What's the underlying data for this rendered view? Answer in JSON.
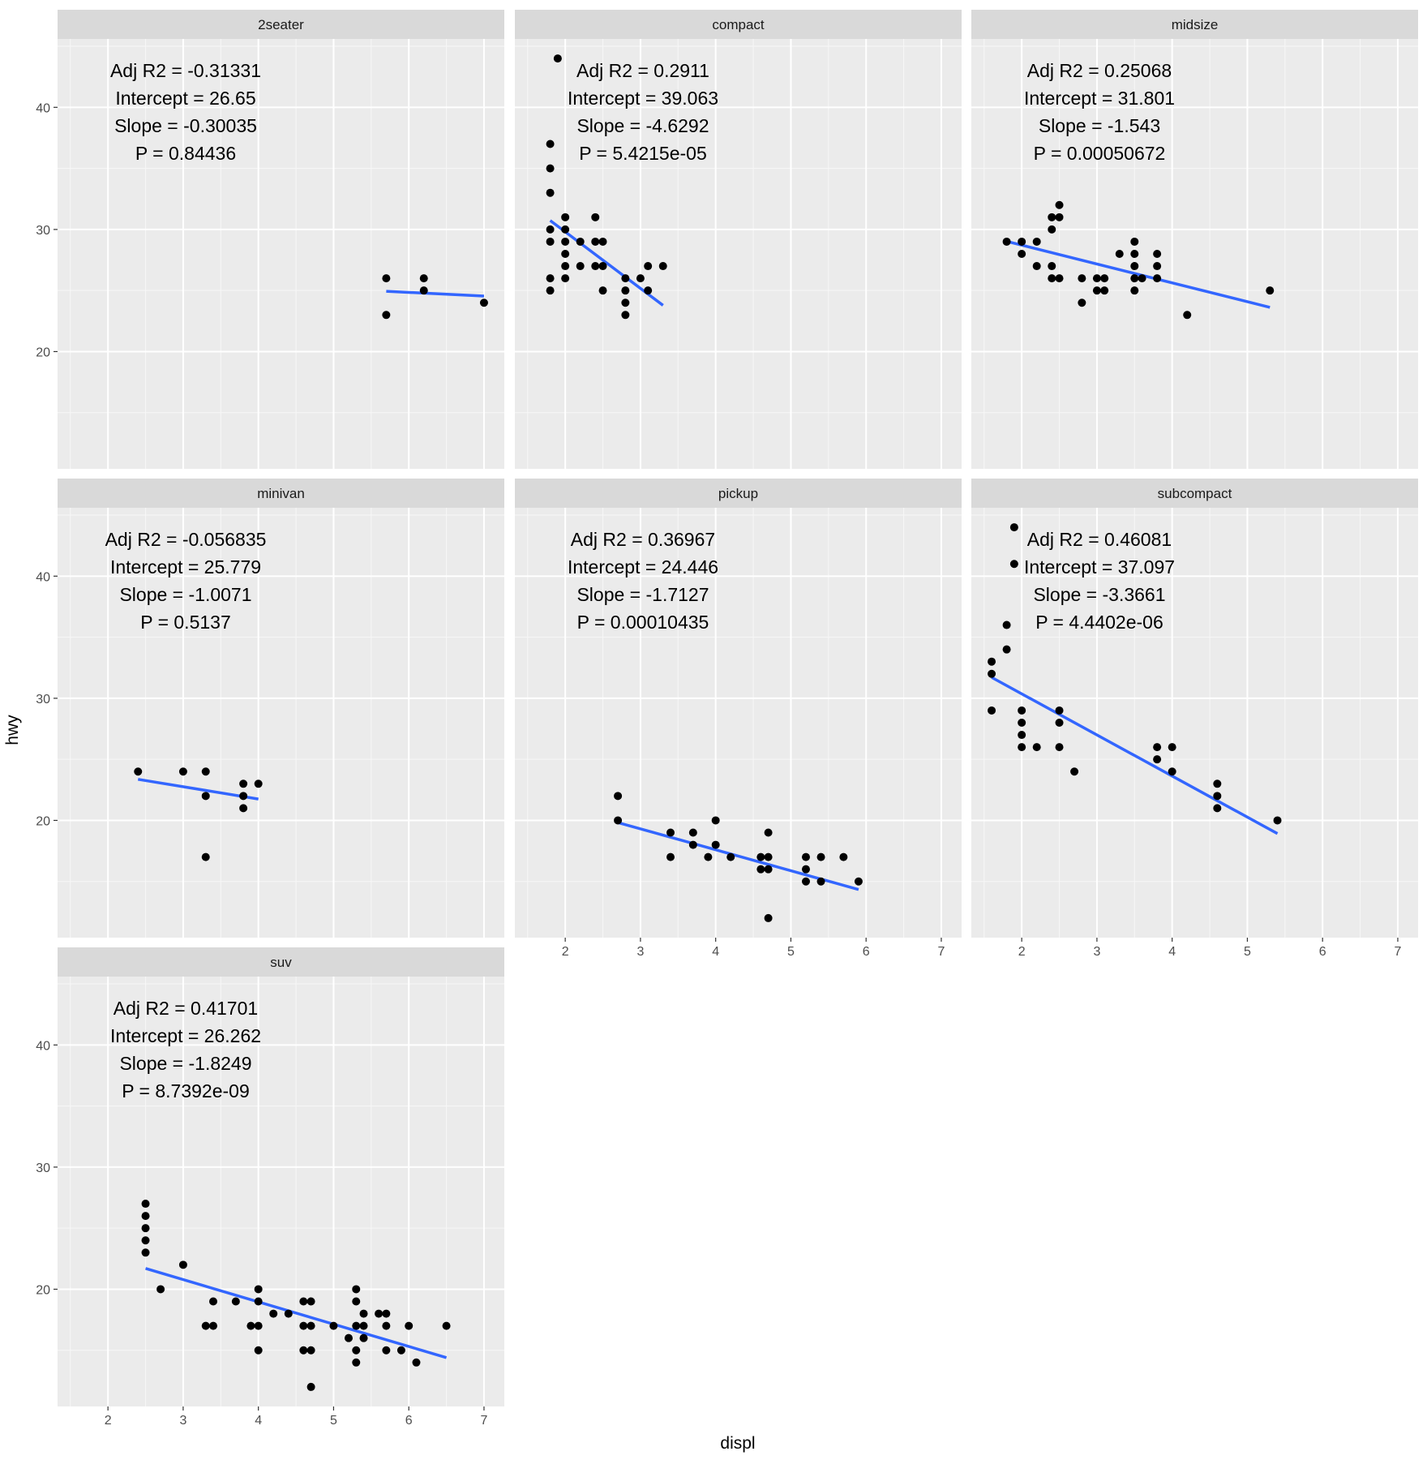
{
  "chart_data": {
    "type": "scatter",
    "xlabel": "displ",
    "ylabel": "hwy",
    "xlim": [
      1.33,
      7.27
    ],
    "ylim": [
      10.4,
      45.6
    ],
    "x_ticks": [
      2,
      3,
      4,
      5,
      6,
      7
    ],
    "y_ticks": [
      20,
      30,
      40
    ],
    "grid": true,
    "point_color": "#000000",
    "line_color": "#3366FF",
    "panels": [
      {
        "name": "2seater",
        "annotation": [
          "Adj R2 =  -0.31331",
          "Intercept = 26.65",
          "Slope = -0.30035",
          "P = 0.84436"
        ],
        "fit": {
          "x": [
            5.7,
            7.0
          ]
        },
        "points": [
          [
            5.7,
            26
          ],
          [
            5.7,
            23
          ],
          [
            6.2,
            26
          ],
          [
            6.2,
            25
          ],
          [
            7.0,
            24
          ]
        ]
      },
      {
        "name": "compact",
        "annotation": [
          "Adj R2 =  0.2911",
          "Intercept = 39.063",
          "Slope = -4.6292",
          "P = 5.4215e-05"
        ],
        "fit": {
          "x": [
            1.8,
            3.3
          ]
        },
        "points": [
          [
            1.9,
            44
          ],
          [
            1.8,
            37
          ],
          [
            1.8,
            35
          ],
          [
            1.8,
            33
          ],
          [
            1.8,
            30
          ],
          [
            1.8,
            29
          ],
          [
            1.8,
            26
          ],
          [
            1.8,
            25
          ],
          [
            2.0,
            31
          ],
          [
            2.0,
            30
          ],
          [
            2.0,
            29
          ],
          [
            2.0,
            28
          ],
          [
            2.0,
            27
          ],
          [
            2.0,
            26
          ],
          [
            2.2,
            29
          ],
          [
            2.2,
            27
          ],
          [
            2.4,
            31
          ],
          [
            2.4,
            29
          ],
          [
            2.4,
            27
          ],
          [
            2.5,
            29
          ],
          [
            2.5,
            27
          ],
          [
            2.5,
            25
          ],
          [
            2.8,
            26
          ],
          [
            2.8,
            25
          ],
          [
            2.8,
            24
          ],
          [
            2.8,
            23
          ],
          [
            3.0,
            26
          ],
          [
            3.1,
            27
          ],
          [
            3.1,
            25
          ],
          [
            3.3,
            27
          ]
        ]
      },
      {
        "name": "midsize",
        "annotation": [
          "Adj R2 =  0.25068",
          "Intercept = 31.801",
          "Slope = -1.543",
          "P = 0.00050672"
        ],
        "fit": {
          "x": [
            1.8,
            5.3
          ]
        },
        "points": [
          [
            1.8,
            29
          ],
          [
            2.0,
            29
          ],
          [
            2.0,
            28
          ],
          [
            2.2,
            29
          ],
          [
            2.2,
            27
          ],
          [
            2.4,
            31
          ],
          [
            2.4,
            30
          ],
          [
            2.4,
            27
          ],
          [
            2.4,
            26
          ],
          [
            2.5,
            32
          ],
          [
            2.5,
            31
          ],
          [
            2.5,
            26
          ],
          [
            2.8,
            26
          ],
          [
            2.8,
            24
          ],
          [
            3.0,
            26
          ],
          [
            3.0,
            25
          ],
          [
            3.1,
            26
          ],
          [
            3.1,
            25
          ],
          [
            3.3,
            28
          ],
          [
            3.5,
            29
          ],
          [
            3.5,
            28
          ],
          [
            3.5,
            27
          ],
          [
            3.5,
            26
          ],
          [
            3.5,
            25
          ],
          [
            3.6,
            26
          ],
          [
            3.8,
            28
          ],
          [
            3.8,
            27
          ],
          [
            3.8,
            26
          ],
          [
            4.2,
            23
          ],
          [
            5.3,
            25
          ]
        ]
      },
      {
        "name": "minivan",
        "annotation": [
          "Adj R2 =  -0.056835",
          "Intercept = 25.779",
          "Slope = -1.0071",
          "P = 0.5137"
        ],
        "fit": {
          "x": [
            2.4,
            4.0
          ]
        },
        "points": [
          [
            2.4,
            24
          ],
          [
            3.0,
            24
          ],
          [
            3.3,
            24
          ],
          [
            3.3,
            22
          ],
          [
            3.3,
            17
          ],
          [
            3.8,
            23
          ],
          [
            3.8,
            22
          ],
          [
            3.8,
            21
          ],
          [
            4.0,
            23
          ]
        ]
      },
      {
        "name": "pickup",
        "annotation": [
          "Adj R2 =  0.36967",
          "Intercept = 24.446",
          "Slope = -1.7127",
          "P = 0.00010435"
        ],
        "fit": {
          "x": [
            2.7,
            5.9
          ]
        },
        "points": [
          [
            2.7,
            22
          ],
          [
            2.7,
            20
          ],
          [
            3.4,
            19
          ],
          [
            3.4,
            17
          ],
          [
            3.7,
            19
          ],
          [
            3.7,
            18
          ],
          [
            3.9,
            17
          ],
          [
            4.0,
            20
          ],
          [
            4.0,
            18
          ],
          [
            4.2,
            17
          ],
          [
            4.6,
            17
          ],
          [
            4.6,
            16
          ],
          [
            4.7,
            19
          ],
          [
            4.7,
            17
          ],
          [
            4.7,
            16
          ],
          [
            4.7,
            12
          ],
          [
            5.2,
            17
          ],
          [
            5.2,
            16
          ],
          [
            5.2,
            15
          ],
          [
            5.4,
            17
          ],
          [
            5.4,
            15
          ],
          [
            5.7,
            17
          ],
          [
            5.9,
            15
          ]
        ]
      },
      {
        "name": "subcompact",
        "annotation": [
          "Adj R2 =  0.46081",
          "Intercept = 37.097",
          "Slope = -3.3661",
          "P = 4.4402e-06"
        ],
        "fit": {
          "x": [
            1.6,
            5.4
          ]
        },
        "points": [
          [
            1.9,
            44
          ],
          [
            1.9,
            41
          ],
          [
            1.8,
            36
          ],
          [
            1.8,
            34
          ],
          [
            1.6,
            33
          ],
          [
            1.6,
            32
          ],
          [
            1.6,
            29
          ],
          [
            2.0,
            29
          ],
          [
            2.0,
            28
          ],
          [
            2.0,
            27
          ],
          [
            2.0,
            26
          ],
          [
            2.2,
            26
          ],
          [
            2.5,
            29
          ],
          [
            2.5,
            28
          ],
          [
            2.5,
            26
          ],
          [
            2.7,
            24
          ],
          [
            3.8,
            26
          ],
          [
            3.8,
            25
          ],
          [
            4.0,
            26
          ],
          [
            4.0,
            24
          ],
          [
            4.6,
            23
          ],
          [
            4.6,
            22
          ],
          [
            4.6,
            21
          ],
          [
            5.4,
            20
          ]
        ]
      },
      {
        "name": "suv",
        "annotation": [
          "Adj R2 =  0.41701",
          "Intercept = 26.262",
          "Slope = -1.8249",
          "P = 8.7392e-09"
        ],
        "fit": {
          "x": [
            2.5,
            6.5
          ]
        },
        "points": [
          [
            2.5,
            27
          ],
          [
            2.5,
            26
          ],
          [
            2.5,
            25
          ],
          [
            2.5,
            24
          ],
          [
            2.5,
            23
          ],
          [
            2.7,
            20
          ],
          [
            3.0,
            22
          ],
          [
            3.3,
            17
          ],
          [
            3.4,
            19
          ],
          [
            3.4,
            17
          ],
          [
            3.7,
            19
          ],
          [
            3.9,
            17
          ],
          [
            4.0,
            20
          ],
          [
            4.0,
            19
          ],
          [
            4.0,
            17
          ],
          [
            4.0,
            15
          ],
          [
            4.2,
            18
          ],
          [
            4.4,
            18
          ],
          [
            4.6,
            19
          ],
          [
            4.6,
            17
          ],
          [
            4.6,
            15
          ],
          [
            4.7,
            19
          ],
          [
            4.7,
            17
          ],
          [
            4.7,
            15
          ],
          [
            4.7,
            12
          ],
          [
            5.0,
            17
          ],
          [
            5.2,
            16
          ],
          [
            5.3,
            20
          ],
          [
            5.3,
            19
          ],
          [
            5.3,
            17
          ],
          [
            5.3,
            15
          ],
          [
            5.3,
            14
          ],
          [
            5.4,
            18
          ],
          [
            5.4,
            17
          ],
          [
            5.4,
            16
          ],
          [
            5.6,
            18
          ],
          [
            5.7,
            18
          ],
          [
            5.7,
            17
          ],
          [
            5.7,
            15
          ],
          [
            5.9,
            15
          ],
          [
            6.0,
            17
          ],
          [
            6.1,
            14
          ],
          [
            6.5,
            17
          ]
        ]
      }
    ]
  }
}
